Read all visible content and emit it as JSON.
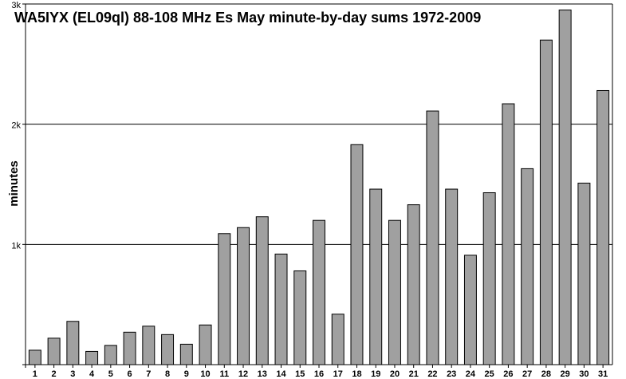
{
  "chart_data": {
    "type": "bar",
    "title": "WA5IYX (EL09ql) 88-108 MHz Es May minute-by-day sums 1972-2009",
    "xlabel": "",
    "ylabel": "minutes",
    "ylim": [
      0,
      3000
    ],
    "yticks": [
      {
        "value": 1000,
        "label": "1k"
      },
      {
        "value": 2000,
        "label": "2k"
      },
      {
        "value": 3000,
        "label": "3k"
      }
    ],
    "grid": true,
    "categories": [
      "1",
      "2",
      "3",
      "4",
      "5",
      "6",
      "7",
      "8",
      "9",
      "10",
      "11",
      "12",
      "13",
      "14",
      "15",
      "16",
      "17",
      "18",
      "19",
      "20",
      "21",
      "22",
      "23",
      "24",
      "25",
      "26",
      "27",
      "28",
      "29",
      "30",
      "31"
    ],
    "values": [
      120,
      220,
      360,
      110,
      160,
      270,
      320,
      250,
      170,
      330,
      1090,
      1140,
      1230,
      920,
      780,
      1200,
      420,
      1830,
      1460,
      1200,
      1330,
      2110,
      1460,
      910,
      1430,
      2170,
      1630,
      2700,
      2950,
      1510,
      2280
    ],
    "bar_color": "#a0a0a0",
    "bar_edge_color": "#000000"
  }
}
